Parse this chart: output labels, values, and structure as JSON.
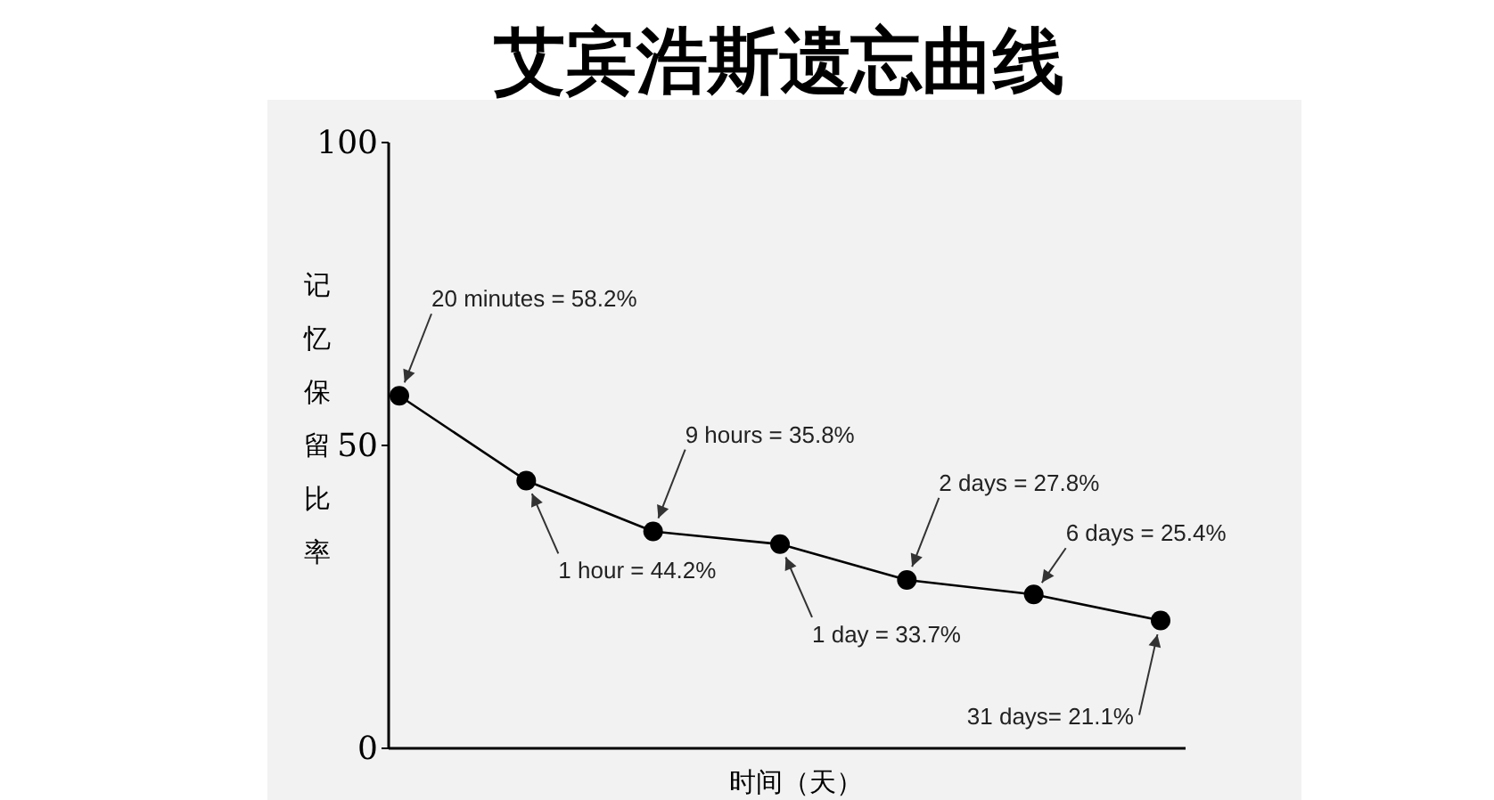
{
  "chart_data": {
    "type": "line",
    "title": "艾宾浩斯遗忘曲线",
    "xlabel": "时间（天）",
    "ylabel": "记忆保留比率",
    "categories": [
      null,
      null,
      null,
      null,
      null,
      null,
      null
    ],
    "values": [
      58.2,
      44.2,
      35.8,
      33.7,
      27.8,
      25.4,
      21.1
    ],
    "color": "#000000",
    "marker": "circle",
    "line_style": "solid",
    "ylim": [
      0,
      100
    ],
    "yticks": [
      0,
      50,
      100
    ],
    "annotations": [
      "20 minutes = 58.2%",
      "1 hour = 44.2%",
      "9 hours = 35.8%",
      "1 day = 33.7%",
      "2 days = 27.8%",
      "6 days = 25.4%",
      "31 days= 21.1%"
    ]
  }
}
